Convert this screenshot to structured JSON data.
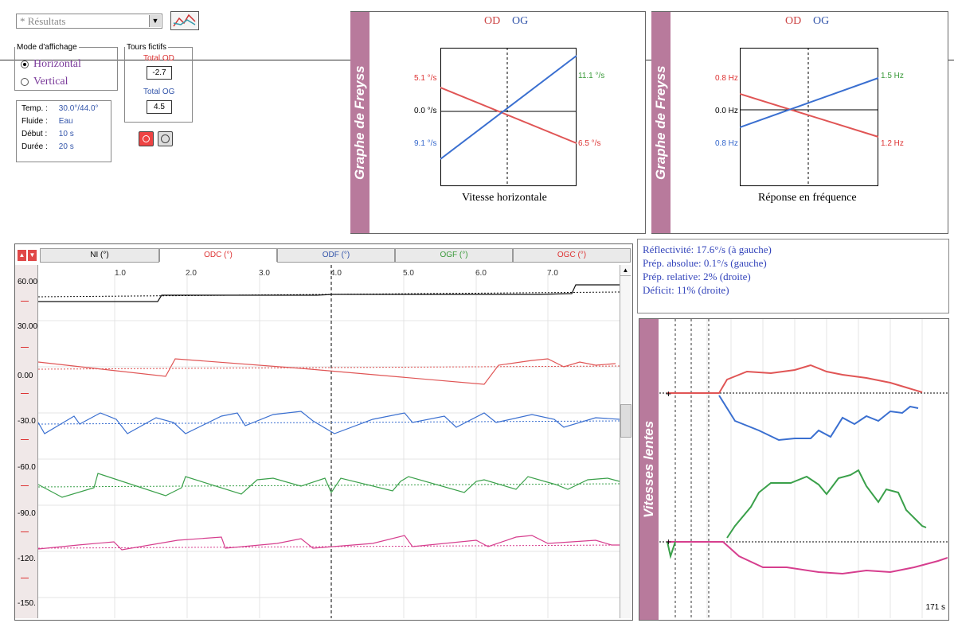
{
  "window": {
    "results_select": "* Résultats",
    "mode_group": {
      "title": "Mode d'affichage",
      "options": [
        "Horizontal",
        "Vertical"
      ],
      "selected": "Horizontal"
    },
    "tours": {
      "title": "Tours fictifs",
      "total_od_label": "Total OD",
      "total_od_value": "-2.7",
      "total_og_label": "Total OG",
      "total_og_value": "4.5"
    },
    "info": {
      "rows": [
        {
          "label": "Temp. :",
          "value": "30.0°/44.0°"
        },
        {
          "label": "Fluide :",
          "value": "Eau"
        },
        {
          "label": "Début :",
          "value": "10 s"
        },
        {
          "label": "Durée :",
          "value": "20 s"
        }
      ]
    }
  },
  "freyss_side_title": "Graphe de Freyss",
  "freyss1": {
    "legend_od": "OD",
    "legend_og": "OG",
    "label_top_left": "5.1 °/s",
    "label_mid_left": "0.0 °/s",
    "label_bottom_left": "9.1 °/s",
    "label_top_right": "11.1 °/s",
    "label_bottom_right": "6.5 °/s",
    "caption": "Vitesse horizontale"
  },
  "freyss2": {
    "legend_od": "OD",
    "legend_og": "OG",
    "label_top_left": "0.8 Hz",
    "label_mid_left": "0.0 Hz",
    "label_bottom_left": "0.8 Hz",
    "label_top_right": "1.5 Hz",
    "label_bottom_right": "1.2 Hz",
    "caption": "Réponse en fréquence"
  },
  "tabs": [
    "NI (°)",
    "ODC (°)",
    "ODF (°)",
    "OGF (°)",
    "OGC (°)"
  ],
  "x_ticks": [
    "1.0",
    "2.0",
    "3.0",
    "4.0",
    "5.0",
    "6.0",
    "7.0"
  ],
  "y_ticks": [
    "60.00",
    "30.00",
    "0.00",
    "-30.0",
    "-60.0",
    "-90.0",
    "-120.",
    "-150."
  ],
  "metrics": [
    "Réflectivité: 17.6°/s (à gauche)",
    "Prép. absolue: 0.1°/s (gauche)",
    "Prép. relative: 2% (droite)",
    "Déficit: 11% (droite)"
  ],
  "slow_title": "Vitesses lentes",
  "slow_time": "171 s",
  "colors": {
    "od": "#e05555",
    "og": "#3a6fd0",
    "green": "#3aa04a",
    "pink": "#d63e8e",
    "sidebar": "#b87a9c"
  }
}
